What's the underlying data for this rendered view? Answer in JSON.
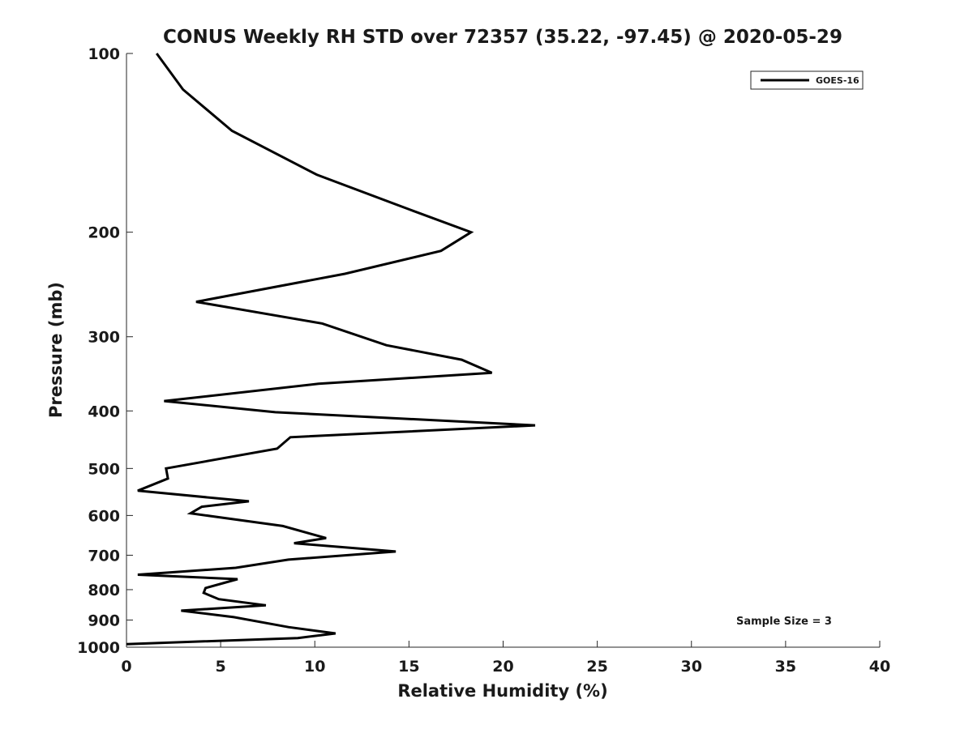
{
  "chart_data": {
    "type": "line",
    "title": "CONUS Weekly RH STD over 72357 (35.22, -97.45) @ 2020-05-29",
    "xlabel": "Relative Humidity (%)",
    "ylabel": "Pressure (mb)",
    "xlim": [
      0,
      40
    ],
    "ylim": [
      100,
      1000
    ],
    "yscale": "log",
    "yreversed": true,
    "xticks": [
      0,
      5,
      10,
      15,
      20,
      25,
      30,
      35,
      40
    ],
    "yticks": [
      100,
      200,
      300,
      400,
      500,
      600,
      700,
      800,
      900,
      1000
    ],
    "legend_position": "top-right",
    "series": [
      {
        "name": "GOES-16",
        "color": "#000000",
        "x": [
          1.6,
          3.0,
          5.6,
          10.1,
          15.0,
          18.3,
          16.7,
          11.6,
          3.7,
          10.4,
          13.8,
          17.8,
          19.4,
          10.2,
          2.0,
          7.9,
          21.7,
          8.7,
          8.0,
          2.1,
          2.2,
          0.6,
          6.5,
          4.0,
          3.4,
          8.3,
          10.6,
          8.9,
          14.3,
          8.6,
          5.8,
          0.6,
          5.9,
          4.2,
          4.1,
          4.9,
          7.4,
          2.9,
          5.7,
          8.6,
          11.1,
          9.1,
          0.0
        ],
        "y": [
          100,
          115,
          135,
          160,
          183,
          200,
          215,
          235,
          262,
          285,
          310,
          328,
          345,
          360,
          385,
          402,
          423,
          443,
          463,
          500,
          520,
          545,
          568,
          580,
          595,
          625,
          655,
          668,
          690,
          712,
          735,
          755,
          768,
          795,
          810,
          830,
          850,
          868,
          890,
          925,
          948,
          965,
          988
        ]
      }
    ],
    "annotation": "Sample Size = 3"
  }
}
